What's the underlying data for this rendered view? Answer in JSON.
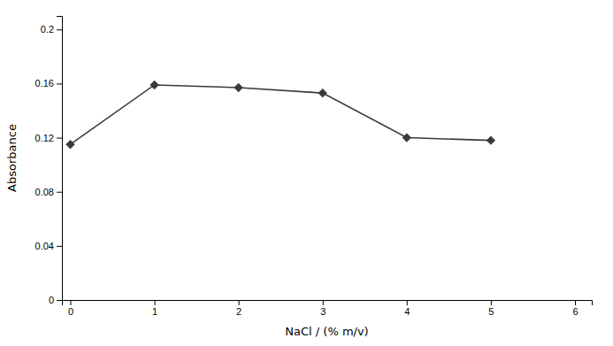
{
  "chart_data": {
    "type": "line",
    "x": [
      0,
      1,
      2,
      3,
      4,
      5
    ],
    "values": [
      0.115,
      0.159,
      0.157,
      0.153,
      0.12,
      0.118
    ],
    "xlabel": "NaCl / (% m/v)",
    "ylabel": "Absorbance",
    "xlim": [
      -0.1,
      6.2
    ],
    "ylim": [
      0,
      0.21
    ],
    "xticks": [
      0,
      1,
      2,
      3,
      4,
      5,
      6
    ],
    "yticks": [
      0,
      0.04,
      0.08,
      0.12,
      0.16,
      0.2
    ],
    "color": "#3a3a3a",
    "marker": "diamond"
  }
}
